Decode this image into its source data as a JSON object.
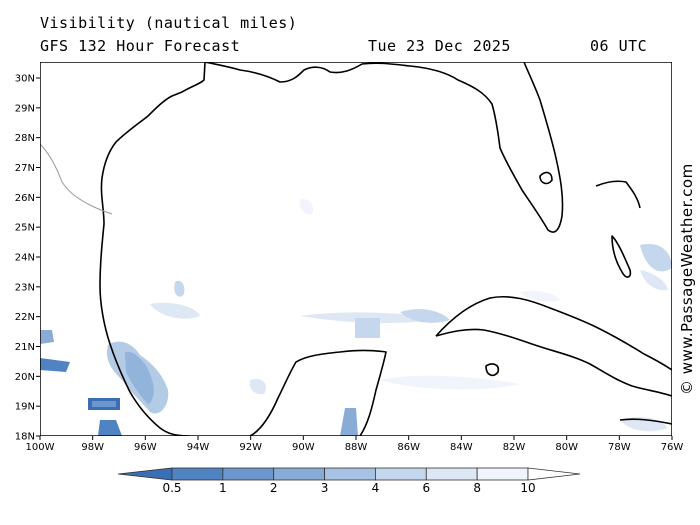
{
  "header": {
    "title": "Visibility (nautical miles)",
    "forecast": "GFS 132 Hour Forecast",
    "date": "Tue 23 Dec 2025",
    "time": "06 UTC"
  },
  "credit": "© www.PassageWeather.com",
  "map": {
    "lon_labels": [
      "100W",
      "98W",
      "96W",
      "94W",
      "92W",
      "90W",
      "88W",
      "86W",
      "84W",
      "82W",
      "80W",
      "78W",
      "76W"
    ],
    "lat_labels": [
      "30N",
      "29N",
      "28N",
      "27N",
      "26N",
      "25N",
      "24N",
      "23N",
      "22N",
      "21N",
      "20N",
      "19N",
      "18N"
    ],
    "land_color": "#ffffff",
    "coast_color": "#000000"
  },
  "legend": {
    "labels": [
      "0.5",
      "1",
      "2",
      "3",
      "4",
      "6",
      "8",
      "10"
    ],
    "colors": [
      "#3a6fb5",
      "#4f83c2",
      "#6b97cc",
      "#89acd7",
      "#a7c2e2",
      "#c4d7ec",
      "#dde8f4",
      "#f1f5fb"
    ]
  }
}
